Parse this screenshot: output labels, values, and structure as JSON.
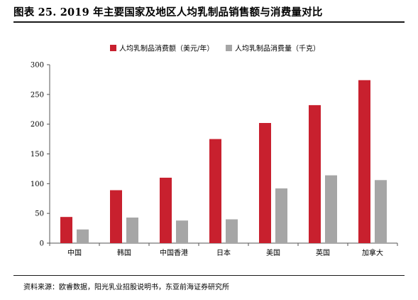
{
  "title": "图表 25. 2019 年主要国家及地区人均乳制品销售额与消费量对比",
  "source": "资料来源：欧睿数据，阳光乳业招股说明书，东亚前海证券研究所",
  "chart_data": {
    "type": "bar",
    "categories": [
      "中国",
      "韩国",
      "中国香港",
      "日本",
      "美国",
      "英国",
      "加拿大"
    ],
    "series": [
      {
        "name": "人均乳制品消费额（美元/年）",
        "color": "#c8202e",
        "values": [
          44,
          89,
          110,
          175,
          202,
          232,
          274
        ]
      },
      {
        "name": "人均乳制品消费量（千克）",
        "color": "#a6a6a6",
        "values": [
          23,
          43,
          38,
          40,
          92,
          114,
          106
        ]
      }
    ],
    "y_ticks": [
      0,
      50,
      100,
      150,
      200,
      250,
      300
    ],
    "ylim": [
      0,
      300
    ],
    "grid": false,
    "legend_position": "top-center"
  }
}
